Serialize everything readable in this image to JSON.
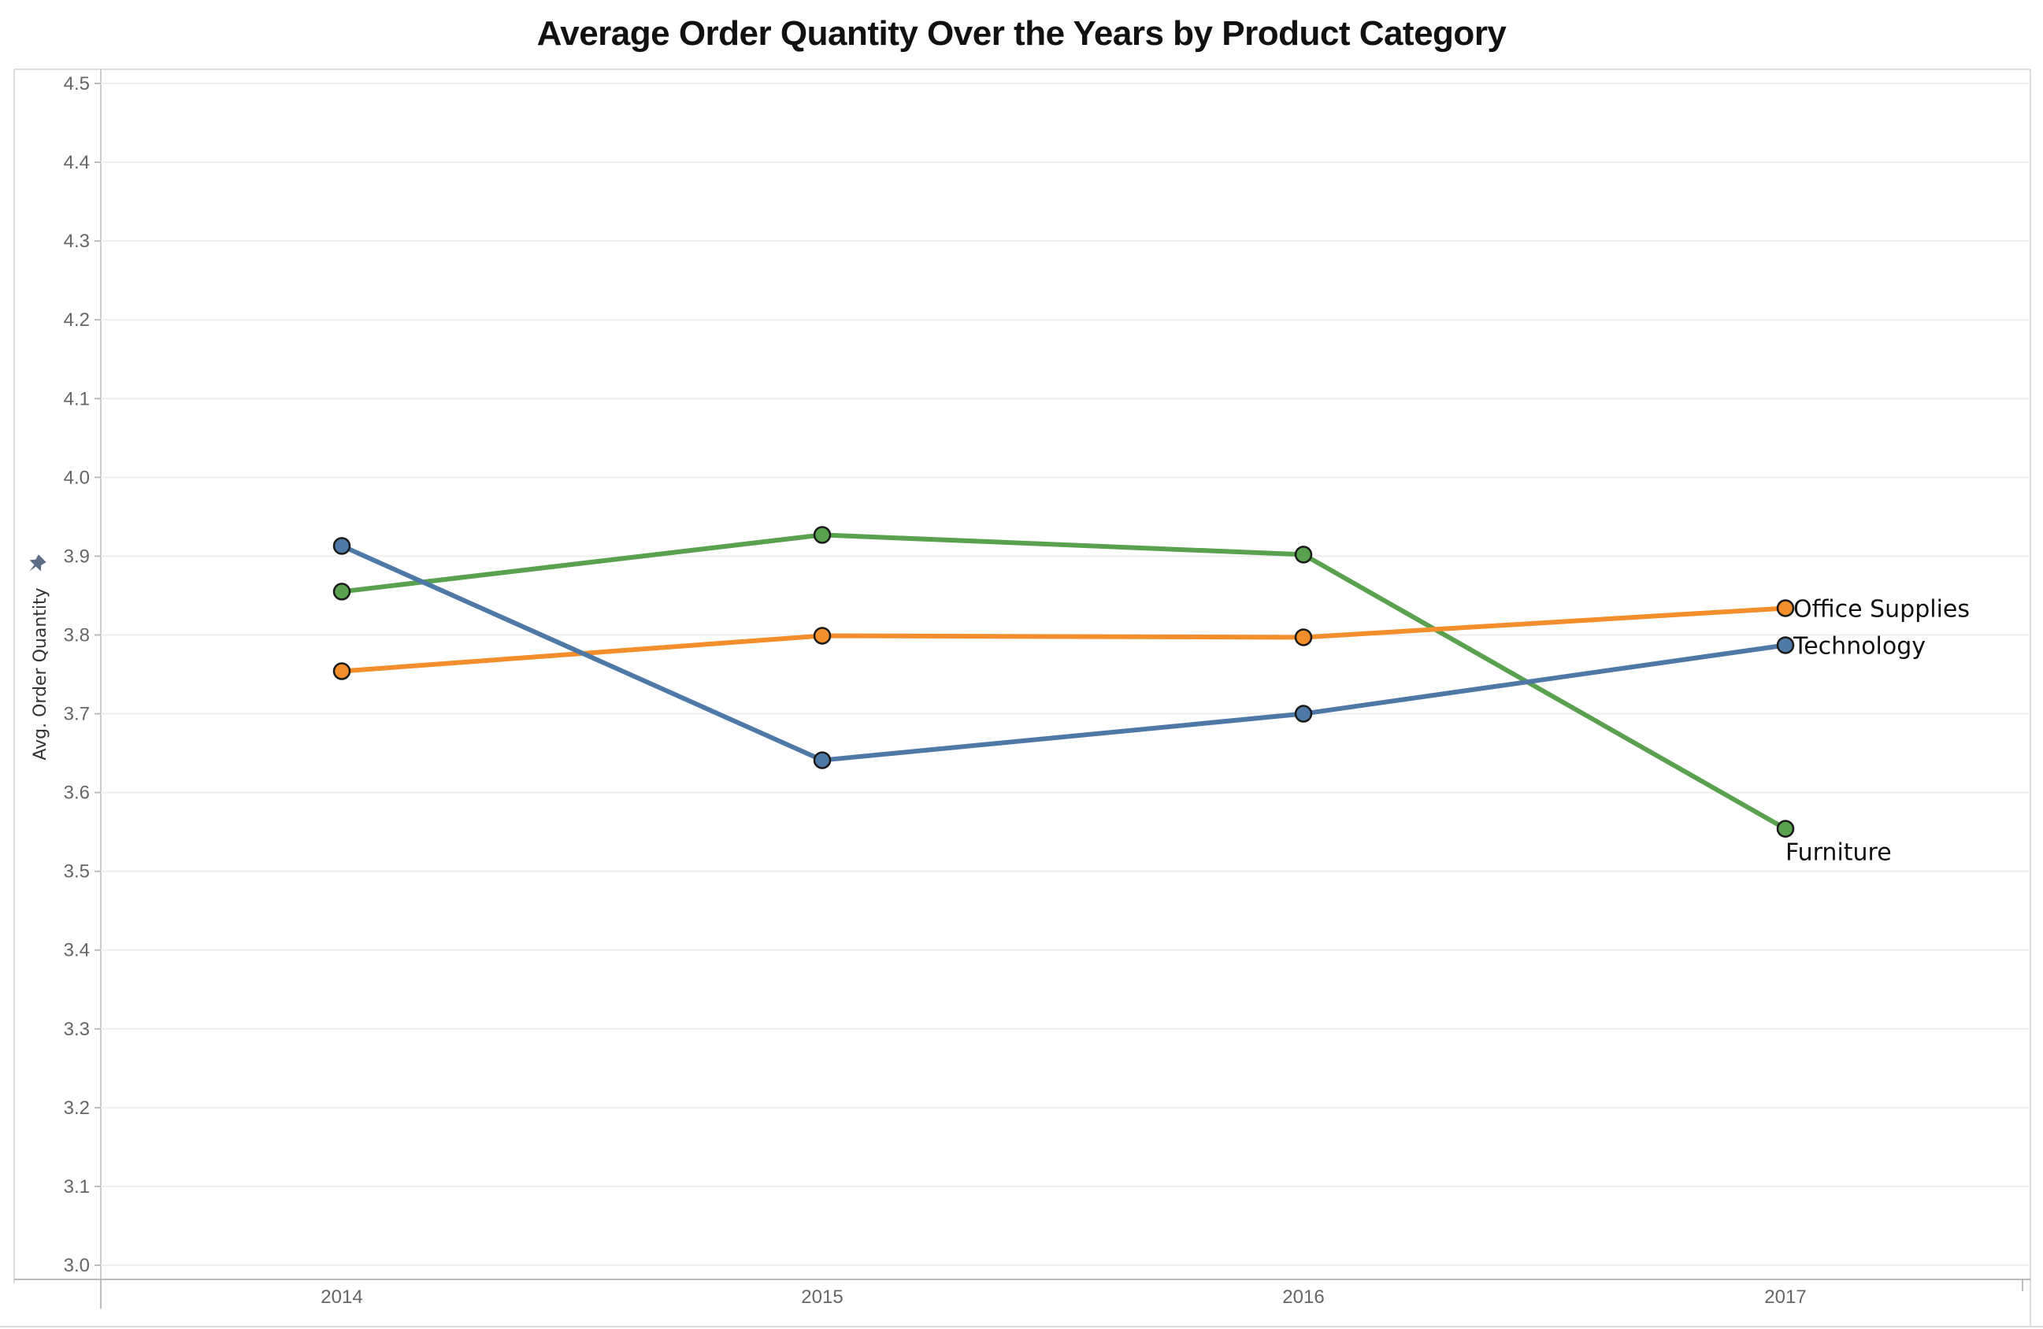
{
  "chart_data": {
    "type": "line",
    "title": "Average Order Quantity Over the Years by Product Category",
    "xlabel": "",
    "ylabel": "Avg. Order Quantity",
    "x": [
      "2014",
      "2015",
      "2016",
      "2017"
    ],
    "ylim": [
      3.0,
      4.5
    ],
    "yticks": [
      "3.0",
      "3.1",
      "3.2",
      "3.3",
      "3.4",
      "3.5",
      "3.6",
      "3.7",
      "3.8",
      "3.9",
      "4.0",
      "4.1",
      "4.2",
      "4.3",
      "4.4",
      "4.5"
    ],
    "grid": true,
    "legend": "end-of-line labels",
    "series": [
      {
        "name": "Furniture",
        "color": "#59a14f",
        "values": [
          3.855,
          3.927,
          3.902,
          3.554
        ]
      },
      {
        "name": "Office Supplies",
        "color": "#f28e2b",
        "values": [
          3.754,
          3.799,
          3.797,
          3.834
        ]
      },
      {
        "name": "Technology",
        "color": "#4e79a7",
        "values": [
          3.913,
          3.641,
          3.7,
          3.787
        ]
      }
    ]
  },
  "icons": {
    "pin": "pin-icon"
  }
}
